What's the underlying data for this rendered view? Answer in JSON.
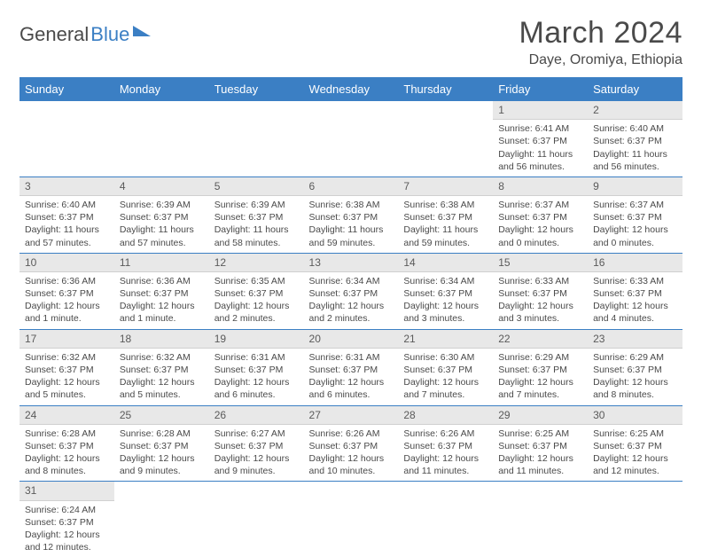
{
  "logo": {
    "part1": "General",
    "part2": "Blue"
  },
  "title": "March 2024",
  "location": "Daye, Oromiya, Ethiopia",
  "header_bg": "#3b7fc4",
  "header_text": "#ffffff",
  "daynum_bg": "#e8e8e8",
  "border_color": "#3b7fc4",
  "weekdays": [
    "Sunday",
    "Monday",
    "Tuesday",
    "Wednesday",
    "Thursday",
    "Friday",
    "Saturday"
  ],
  "weeks": [
    [
      null,
      null,
      null,
      null,
      null,
      {
        "n": "1",
        "sunrise": "Sunrise: 6:41 AM",
        "sunset": "Sunset: 6:37 PM",
        "day": "Daylight: 11 hours and 56 minutes."
      },
      {
        "n": "2",
        "sunrise": "Sunrise: 6:40 AM",
        "sunset": "Sunset: 6:37 PM",
        "day": "Daylight: 11 hours and 56 minutes."
      }
    ],
    [
      {
        "n": "3",
        "sunrise": "Sunrise: 6:40 AM",
        "sunset": "Sunset: 6:37 PM",
        "day": "Daylight: 11 hours and 57 minutes."
      },
      {
        "n": "4",
        "sunrise": "Sunrise: 6:39 AM",
        "sunset": "Sunset: 6:37 PM",
        "day": "Daylight: 11 hours and 57 minutes."
      },
      {
        "n": "5",
        "sunrise": "Sunrise: 6:39 AM",
        "sunset": "Sunset: 6:37 PM",
        "day": "Daylight: 11 hours and 58 minutes."
      },
      {
        "n": "6",
        "sunrise": "Sunrise: 6:38 AM",
        "sunset": "Sunset: 6:37 PM",
        "day": "Daylight: 11 hours and 59 minutes."
      },
      {
        "n": "7",
        "sunrise": "Sunrise: 6:38 AM",
        "sunset": "Sunset: 6:37 PM",
        "day": "Daylight: 11 hours and 59 minutes."
      },
      {
        "n": "8",
        "sunrise": "Sunrise: 6:37 AM",
        "sunset": "Sunset: 6:37 PM",
        "day": "Daylight: 12 hours and 0 minutes."
      },
      {
        "n": "9",
        "sunrise": "Sunrise: 6:37 AM",
        "sunset": "Sunset: 6:37 PM",
        "day": "Daylight: 12 hours and 0 minutes."
      }
    ],
    [
      {
        "n": "10",
        "sunrise": "Sunrise: 6:36 AM",
        "sunset": "Sunset: 6:37 PM",
        "day": "Daylight: 12 hours and 1 minute."
      },
      {
        "n": "11",
        "sunrise": "Sunrise: 6:36 AM",
        "sunset": "Sunset: 6:37 PM",
        "day": "Daylight: 12 hours and 1 minute."
      },
      {
        "n": "12",
        "sunrise": "Sunrise: 6:35 AM",
        "sunset": "Sunset: 6:37 PM",
        "day": "Daylight: 12 hours and 2 minutes."
      },
      {
        "n": "13",
        "sunrise": "Sunrise: 6:34 AM",
        "sunset": "Sunset: 6:37 PM",
        "day": "Daylight: 12 hours and 2 minutes."
      },
      {
        "n": "14",
        "sunrise": "Sunrise: 6:34 AM",
        "sunset": "Sunset: 6:37 PM",
        "day": "Daylight: 12 hours and 3 minutes."
      },
      {
        "n": "15",
        "sunrise": "Sunrise: 6:33 AM",
        "sunset": "Sunset: 6:37 PM",
        "day": "Daylight: 12 hours and 3 minutes."
      },
      {
        "n": "16",
        "sunrise": "Sunrise: 6:33 AM",
        "sunset": "Sunset: 6:37 PM",
        "day": "Daylight: 12 hours and 4 minutes."
      }
    ],
    [
      {
        "n": "17",
        "sunrise": "Sunrise: 6:32 AM",
        "sunset": "Sunset: 6:37 PM",
        "day": "Daylight: 12 hours and 5 minutes."
      },
      {
        "n": "18",
        "sunrise": "Sunrise: 6:32 AM",
        "sunset": "Sunset: 6:37 PM",
        "day": "Daylight: 12 hours and 5 minutes."
      },
      {
        "n": "19",
        "sunrise": "Sunrise: 6:31 AM",
        "sunset": "Sunset: 6:37 PM",
        "day": "Daylight: 12 hours and 6 minutes."
      },
      {
        "n": "20",
        "sunrise": "Sunrise: 6:31 AM",
        "sunset": "Sunset: 6:37 PM",
        "day": "Daylight: 12 hours and 6 minutes."
      },
      {
        "n": "21",
        "sunrise": "Sunrise: 6:30 AM",
        "sunset": "Sunset: 6:37 PM",
        "day": "Daylight: 12 hours and 7 minutes."
      },
      {
        "n": "22",
        "sunrise": "Sunrise: 6:29 AM",
        "sunset": "Sunset: 6:37 PM",
        "day": "Daylight: 12 hours and 7 minutes."
      },
      {
        "n": "23",
        "sunrise": "Sunrise: 6:29 AM",
        "sunset": "Sunset: 6:37 PM",
        "day": "Daylight: 12 hours and 8 minutes."
      }
    ],
    [
      {
        "n": "24",
        "sunrise": "Sunrise: 6:28 AM",
        "sunset": "Sunset: 6:37 PM",
        "day": "Daylight: 12 hours and 8 minutes."
      },
      {
        "n": "25",
        "sunrise": "Sunrise: 6:28 AM",
        "sunset": "Sunset: 6:37 PM",
        "day": "Daylight: 12 hours and 9 minutes."
      },
      {
        "n": "26",
        "sunrise": "Sunrise: 6:27 AM",
        "sunset": "Sunset: 6:37 PM",
        "day": "Daylight: 12 hours and 9 minutes."
      },
      {
        "n": "27",
        "sunrise": "Sunrise: 6:26 AM",
        "sunset": "Sunset: 6:37 PM",
        "day": "Daylight: 12 hours and 10 minutes."
      },
      {
        "n": "28",
        "sunrise": "Sunrise: 6:26 AM",
        "sunset": "Sunset: 6:37 PM",
        "day": "Daylight: 12 hours and 11 minutes."
      },
      {
        "n": "29",
        "sunrise": "Sunrise: 6:25 AM",
        "sunset": "Sunset: 6:37 PM",
        "day": "Daylight: 12 hours and 11 minutes."
      },
      {
        "n": "30",
        "sunrise": "Sunrise: 6:25 AM",
        "sunset": "Sunset: 6:37 PM",
        "day": "Daylight: 12 hours and 12 minutes."
      }
    ],
    [
      {
        "n": "31",
        "sunrise": "Sunrise: 6:24 AM",
        "sunset": "Sunset: 6:37 PM",
        "day": "Daylight: 12 hours and 12 minutes."
      },
      null,
      null,
      null,
      null,
      null,
      null
    ]
  ]
}
